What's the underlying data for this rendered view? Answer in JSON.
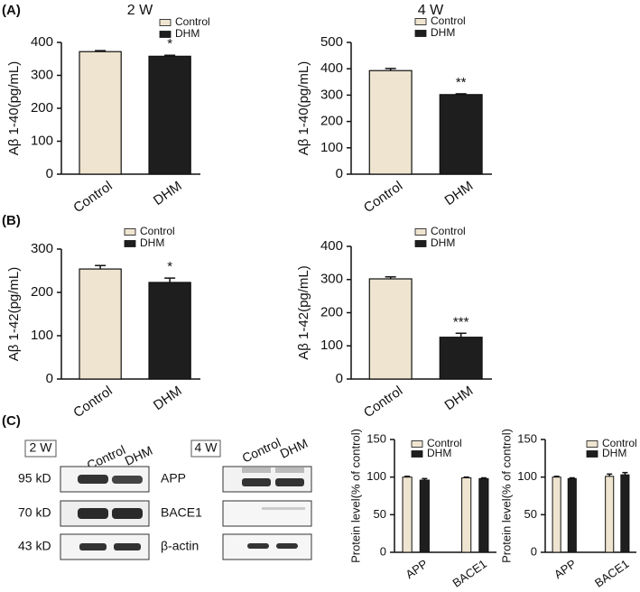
{
  "panel_labels": [
    "(A)",
    "(B)",
    "(C)"
  ],
  "blots": [
    {
      "label": "2 W",
      "columns": [
        "Control",
        "DHM"
      ],
      "sizes": [
        "95 kD",
        "70 kD",
        "43 kD"
      ],
      "proteins": [
        "APP",
        "BACE1",
        "β-actin"
      ]
    },
    {
      "label": "4 W",
      "columns": [
        "Control",
        "DHM"
      ]
    }
  ],
  "chart_data": [
    {
      "type": "bar",
      "title": "2 W",
      "y_label": "Aβ 1-40(pg/mL)",
      "categories": [
        "Control",
        "DHM"
      ],
      "values": [
        372,
        358
      ],
      "errors": [
        3,
        3
      ],
      "colors": [
        "#efe4d0",
        "#1e1e1e"
      ],
      "annotation": "*",
      "ylim": [
        0,
        400
      ],
      "yticks": [
        0,
        100,
        200,
        300,
        400
      ]
    },
    {
      "type": "bar",
      "title": "4 W",
      "y_label": "Aβ 1-40(pg/mL)",
      "categories": [
        "Control",
        "DHM"
      ],
      "values": [
        393,
        302
      ],
      "errors": [
        8,
        3
      ],
      "colors": [
        "#efe4d0",
        "#1e1e1e"
      ],
      "annotation": "**",
      "ylim": [
        0,
        500
      ],
      "yticks": [
        0,
        100,
        200,
        300,
        400,
        500
      ]
    },
    {
      "type": "bar",
      "y_label": "Aβ 1-42(pg/mL)",
      "categories": [
        "Control",
        "DHM"
      ],
      "values": [
        254,
        223
      ],
      "errors": [
        8,
        10
      ],
      "colors": [
        "#efe4d0",
        "#1e1e1e"
      ],
      "annotation": "*",
      "ylim": [
        0,
        300
      ],
      "yticks": [
        0,
        100,
        200,
        300
      ]
    },
    {
      "type": "bar",
      "y_label": "Aβ 1-42(pg/mL)",
      "categories": [
        "Control",
        "DHM"
      ],
      "values": [
        302,
        126
      ],
      "errors": [
        6,
        12
      ],
      "colors": [
        "#efe4d0",
        "#1e1e1e"
      ],
      "annotation": "***",
      "ylim": [
        0,
        400
      ],
      "yticks": [
        0,
        100,
        200,
        300,
        400
      ]
    },
    {
      "type": "grouped_bar",
      "y_label": "Protein level(% of control)",
      "categories": [
        "APP",
        "BACE1"
      ],
      "series": [
        {
          "name": "Control",
          "color": "#efe4d0",
          "values": [
            100,
            99
          ],
          "errors": [
            1,
            1
          ]
        },
        {
          "name": "DHM",
          "color": "#1e1e1e",
          "values": [
            96,
            98
          ],
          "errors": [
            2,
            1
          ]
        }
      ],
      "ylim": [
        0,
        150
      ],
      "yticks": [
        0,
        50,
        100,
        150
      ]
    },
    {
      "type": "grouped_bar",
      "y_label": "Protein level(% of control)",
      "categories": [
        "APP",
        "BACE1"
      ],
      "series": [
        {
          "name": "Control",
          "color": "#efe4d0",
          "values": [
            100,
            101
          ],
          "errors": [
            1,
            3
          ]
        },
        {
          "name": "DHM",
          "color": "#1e1e1e",
          "values": [
            98,
            103
          ],
          "errors": [
            1,
            3
          ]
        }
      ],
      "ylim": [
        0,
        150
      ],
      "yticks": [
        0,
        50,
        100,
        150
      ]
    }
  ]
}
